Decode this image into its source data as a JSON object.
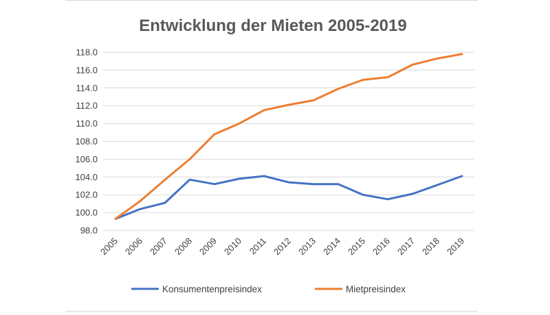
{
  "chart_data": {
    "type": "line",
    "title": "Entwicklung der Mieten 2005-2019",
    "xlabel": "",
    "ylabel": "",
    "categories": [
      "2005",
      "2006",
      "2007",
      "2008",
      "2009",
      "2010",
      "2011",
      "2012",
      "2013",
      "2014",
      "2015",
      "2016",
      "2017",
      "2018",
      "2019"
    ],
    "y_ticks": [
      "98.0",
      "100.0",
      "102.0",
      "104.0",
      "106.0",
      "108.0",
      "110.0",
      "112.0",
      "114.0",
      "116.0",
      "118.0"
    ],
    "ylim": [
      98,
      118
    ],
    "grid": true,
    "legend_position": "bottom",
    "series": [
      {
        "name": "Konsumentenpreisindex",
        "color": "#4472C4",
        "values": [
          99.3,
          100.4,
          101.1,
          103.7,
          103.2,
          103.8,
          104.1,
          103.4,
          103.2,
          103.2,
          102.0,
          101.5,
          102.1,
          103.1,
          104.1
        ]
      },
      {
        "name": "Mietpreisindex",
        "color": "#ED7D31",
        "values": [
          99.3,
          101.3,
          103.7,
          106.0,
          108.8,
          110.0,
          111.5,
          112.1,
          112.6,
          113.9,
          114.9,
          115.2,
          116.6,
          117.3,
          117.8
        ]
      }
    ]
  }
}
